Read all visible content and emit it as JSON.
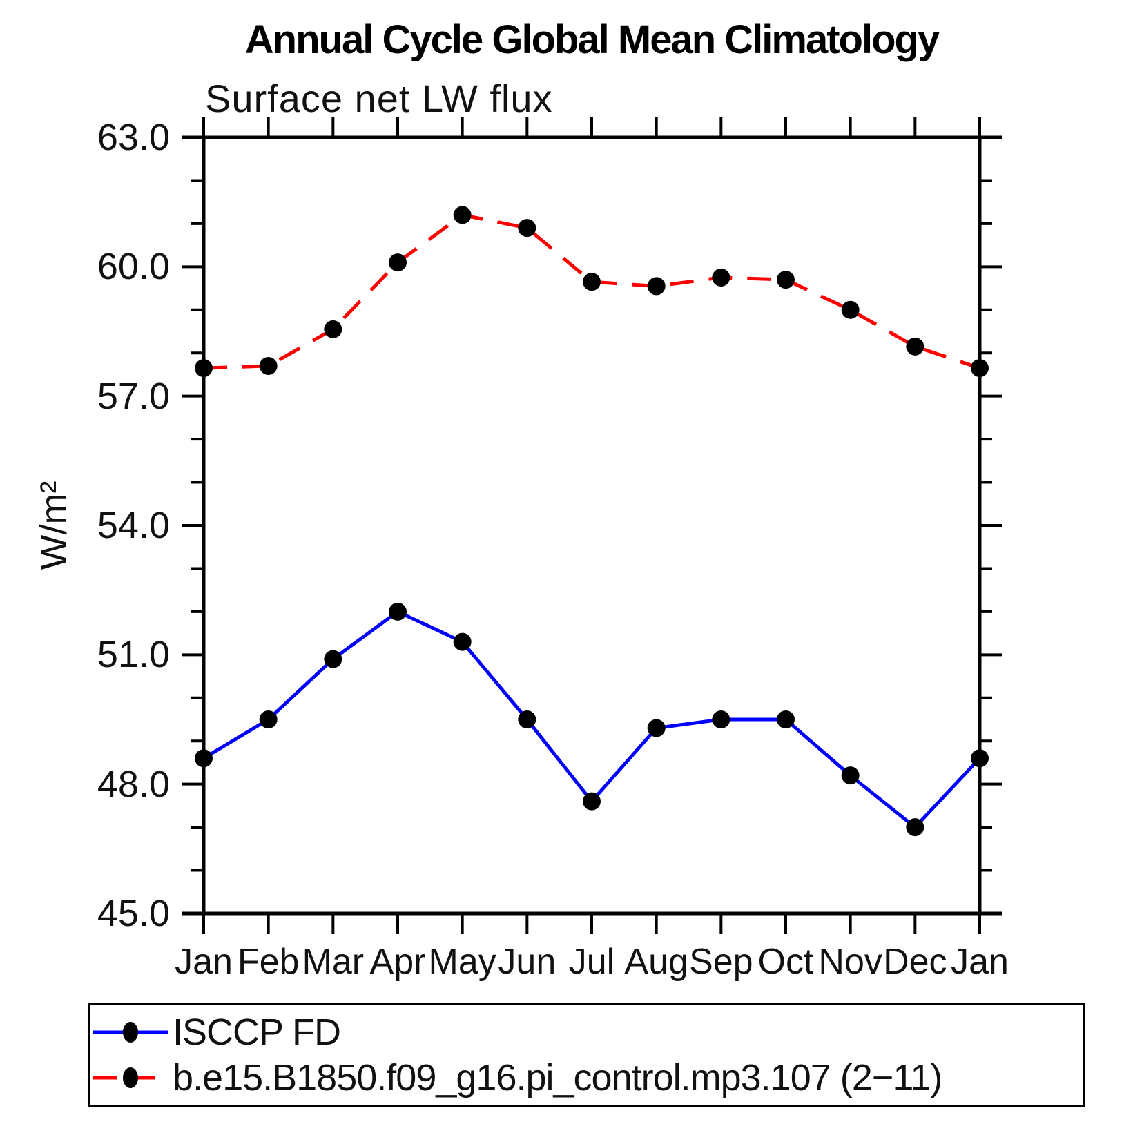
{
  "page": {
    "background_color": "#ffffff",
    "accent_colors": {
      "obs_line": "#0000ff",
      "model_line": "#ff0000",
      "marker": "#000000",
      "axis": "#000000"
    }
  },
  "chart_data": {
    "type": "line",
    "title": "Annual Cycle Global Mean Climatology",
    "subtitle": "Surface net LW flux",
    "ylabel": "W/m²",
    "xlabel": "",
    "categories": [
      "Jan",
      "Feb",
      "Mar",
      "Apr",
      "May",
      "Jun",
      "Jul",
      "Aug",
      "Sep",
      "Oct",
      "Nov",
      "Dec",
      "Jan"
    ],
    "ylim": [
      45.0,
      63.0
    ],
    "y_major_step": 3.0,
    "y_minor_step": 1.0,
    "y_tick_labels": [
      "45.0",
      "48.0",
      "51.0",
      "54.0",
      "57.0",
      "60.0",
      "63.0"
    ],
    "grid": false,
    "legend_position": "bottom-left-box",
    "series": [
      {
        "name": "ISCCP FD",
        "color": "#0000ff",
        "line_style": "solid",
        "marker": "filled-circle",
        "marker_color": "#000000",
        "values": [
          48.6,
          49.5,
          50.9,
          52.0,
          51.3,
          49.5,
          47.6,
          49.3,
          49.5,
          49.5,
          48.2,
          47.0,
          48.6
        ]
      },
      {
        "name": "b.e15.B1850.f09_g16.pi_control.mp3.107 (2−11)",
        "color": "#ff0000",
        "line_style": "dashed",
        "marker": "filled-circle",
        "marker_color": "#000000",
        "values": [
          57.65,
          57.7,
          58.55,
          60.1,
          61.2,
          60.9,
          59.65,
          59.55,
          59.75,
          59.7,
          59.0,
          58.15,
          57.65
        ]
      }
    ]
  }
}
